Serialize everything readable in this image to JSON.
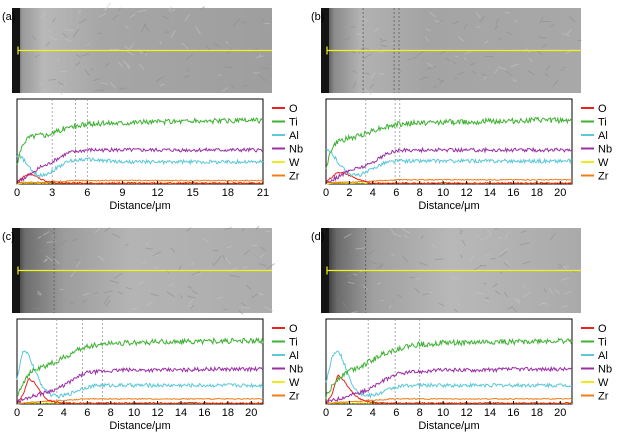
{
  "colors": {
    "O": "#e8231f",
    "Ti": "#3fb233",
    "Al": "#5cc8d8",
    "Nb": "#9b2fa6",
    "W": "#eded1c",
    "Zr": "#f07d1a",
    "scan_line": "#f2f21a",
    "micro_bg": "#a0a0a0"
  },
  "chart_data": [
    {
      "type": "line",
      "panel_label": "(a)",
      "xlabel": "Distance/μm",
      "ylabel": "",
      "xlim": [
        0,
        21
      ],
      "ylim": [
        0,
        100
      ],
      "xticks": [
        "0",
        "3",
        "6",
        "9",
        "12",
        "15",
        "18",
        "21"
      ],
      "legend": [
        "O",
        "Ti",
        "Al",
        "Nb",
        "W",
        "Zr"
      ],
      "legend_position": "right",
      "x": [
        0,
        0.5,
        1,
        1.5,
        2,
        2.5,
        3,
        3.5,
        4,
        4.5,
        5,
        5.5,
        6,
        7,
        8,
        9,
        10,
        12,
        14,
        16,
        18,
        21
      ],
      "series": [
        {
          "name": "Ti",
          "values": [
            22,
            48,
            55,
            57,
            58,
            58,
            60,
            62,
            65,
            67,
            68,
            69,
            70,
            71,
            72,
            72,
            73,
            73,
            74,
            74,
            74,
            75
          ]
        },
        {
          "name": "Nb",
          "values": [
            2,
            6,
            10,
            14,
            20,
            22,
            26,
            30,
            34,
            37,
            38,
            39,
            40,
            40,
            40,
            40,
            40,
            40,
            40,
            40,
            40,
            40
          ]
        },
        {
          "name": "Al",
          "values": [
            34,
            30,
            20,
            12,
            10,
            12,
            15,
            20,
            24,
            27,
            28,
            29,
            29,
            28,
            27,
            26,
            26,
            26,
            26,
            26,
            26,
            26
          ]
        },
        {
          "name": "O",
          "values": [
            3,
            8,
            12,
            10,
            6,
            3,
            2,
            1,
            1,
            1,
            1,
            1,
            1,
            1,
            1,
            1,
            1,
            1,
            1,
            1,
            1,
            1
          ]
        },
        {
          "name": "Zr",
          "values": [
            1,
            2,
            2,
            2,
            2,
            2,
            3,
            3,
            3,
            4,
            4,
            4,
            4,
            4,
            4,
            4,
            4,
            4,
            4,
            4,
            4,
            4
          ]
        },
        {
          "name": "W",
          "values": [
            0,
            1,
            1,
            1,
            1,
            1,
            1,
            1,
            1,
            1,
            1,
            1,
            1,
            1,
            1,
            1,
            1,
            1,
            1,
            1,
            1,
            1
          ]
        }
      ],
      "guide_lines_x": [
        3,
        5,
        6
      ],
      "image_guide_lines_x": []
    },
    {
      "type": "line",
      "panel_label": "(b)",
      "xlabel": "Distance/μm",
      "ylabel": "",
      "xlim": [
        0,
        21
      ],
      "ylim": [
        0,
        100
      ],
      "xticks": [
        "0",
        "2",
        "4",
        "6",
        "8",
        "10",
        "12",
        "14",
        "16",
        "18",
        "20"
      ],
      "legend": [
        "O",
        "Ti",
        "Al",
        "Nb",
        "W",
        "Zr"
      ],
      "legend_position": "right",
      "x": [
        0,
        0.5,
        1,
        1.5,
        2,
        2.5,
        3,
        3.5,
        4,
        4.5,
        5,
        5.5,
        6,
        7,
        8,
        9,
        10,
        12,
        14,
        16,
        18,
        21
      ],
      "series": [
        {
          "name": "Ti",
          "values": [
            20,
            42,
            50,
            52,
            54,
            55,
            58,
            60,
            63,
            65,
            67,
            68,
            70,
            71,
            72,
            72,
            73,
            73,
            74,
            74,
            75,
            75
          ]
        },
        {
          "name": "Nb",
          "values": [
            2,
            5,
            8,
            12,
            16,
            18,
            20,
            22,
            26,
            30,
            34,
            37,
            39,
            40,
            40,
            40,
            40,
            40,
            40,
            40,
            40,
            40
          ]
        },
        {
          "name": "Al",
          "values": [
            40,
            36,
            26,
            18,
            12,
            10,
            11,
            14,
            18,
            22,
            25,
            26,
            27,
            27,
            27,
            27,
            27,
            27,
            27,
            27,
            27,
            27
          ]
        },
        {
          "name": "O",
          "values": [
            3,
            8,
            14,
            13,
            10,
            7,
            4,
            2,
            1,
            1,
            1,
            1,
            1,
            1,
            1,
            1,
            1,
            1,
            1,
            1,
            1,
            1
          ]
        },
        {
          "name": "Zr",
          "values": [
            1,
            2,
            2,
            2,
            2,
            2,
            3,
            3,
            3,
            4,
            4,
            4,
            5,
            5,
            5,
            5,
            5,
            5,
            5,
            5,
            5,
            5
          ]
        },
        {
          "name": "W",
          "values": [
            0,
            1,
            1,
            1,
            1,
            1,
            1,
            1,
            1,
            1,
            1,
            1,
            1,
            1,
            1,
            1,
            1,
            1,
            1,
            1,
            1,
            1
          ]
        }
      ],
      "guide_lines_x": [
        3.4,
        5.9,
        6.3
      ],
      "image_guide_lines_x": [
        3.4,
        5.9,
        6.3
      ]
    },
    {
      "type": "line",
      "panel_label": "(c)",
      "xlabel": "Distance/μm",
      "ylabel": "",
      "xlim": [
        0,
        21
      ],
      "ylim": [
        0,
        100
      ],
      "xticks": [
        "0",
        "2",
        "4",
        "6",
        "8",
        "10",
        "12",
        "14",
        "16",
        "18",
        "20"
      ],
      "legend": [
        "O",
        "Ti",
        "Al",
        "Nb",
        "W",
        "Zr"
      ],
      "legend_position": "right",
      "x": [
        0,
        0.5,
        1,
        1.5,
        2,
        2.5,
        3,
        3.5,
        4,
        4.5,
        5,
        5.5,
        6,
        7,
        8,
        9,
        10,
        12,
        14,
        16,
        18,
        21
      ],
      "series": [
        {
          "name": "Ti",
          "values": [
            10,
            25,
            35,
            40,
            42,
            45,
            48,
            50,
            55,
            58,
            62,
            65,
            68,
            70,
            72,
            72,
            72,
            73,
            73,
            74,
            74,
            74
          ]
        },
        {
          "name": "Nb",
          "values": [
            2,
            5,
            8,
            10,
            12,
            14,
            16,
            18,
            22,
            26,
            30,
            34,
            37,
            38,
            39,
            40,
            40,
            40,
            40,
            41,
            41,
            41
          ]
        },
        {
          "name": "Al",
          "values": [
            30,
            62,
            58,
            40,
            25,
            15,
            10,
            9,
            10,
            12,
            15,
            18,
            20,
            22,
            22,
            22,
            22,
            22,
            22,
            22,
            22,
            22
          ]
        },
        {
          "name": "O",
          "values": [
            2,
            10,
            30,
            25,
            15,
            6,
            3,
            2,
            1,
            1,
            1,
            1,
            1,
            1,
            1,
            1,
            1,
            1,
            1,
            1,
            1,
            1
          ]
        },
        {
          "name": "Zr",
          "values": [
            1,
            1,
            2,
            2,
            3,
            3,
            3,
            4,
            4,
            5,
            5,
            6,
            6,
            6,
            6,
            6,
            6,
            6,
            6,
            6,
            6,
            6
          ]
        },
        {
          "name": "W",
          "values": [
            0,
            1,
            1,
            1,
            1,
            1,
            1,
            1,
            1,
            1,
            1,
            1,
            1,
            1,
            1,
            1,
            1,
            1,
            1,
            1,
            1,
            1
          ]
        }
      ],
      "guide_lines_x": [
        3.4,
        5.6,
        7.3
      ],
      "image_guide_lines_x": [
        3.4
      ]
    },
    {
      "type": "line",
      "panel_label": "(d)",
      "xlabel": "Distance/μm",
      "ylabel": "",
      "xlim": [
        0,
        21
      ],
      "ylim": [
        0,
        100
      ],
      "xticks": [
        "0",
        "2",
        "4",
        "6",
        "8",
        "10",
        "12",
        "14",
        "16",
        "18",
        "20"
      ],
      "legend": [
        "O",
        "Ti",
        "Al",
        "Nb",
        "W",
        "Zr"
      ],
      "legend_position": "right",
      "x": [
        0,
        0.5,
        1,
        1.5,
        2,
        2.5,
        3,
        3.5,
        4,
        4.5,
        5,
        5.5,
        6,
        7,
        8,
        9,
        10,
        12,
        14,
        16,
        18,
        21
      ],
      "series": [
        {
          "name": "Ti",
          "values": [
            8,
            20,
            30,
            35,
            40,
            42,
            45,
            48,
            52,
            56,
            60,
            62,
            64,
            68,
            70,
            71,
            72,
            72,
            73,
            73,
            74,
            74
          ]
        },
        {
          "name": "Nb",
          "values": [
            2,
            4,
            6,
            8,
            10,
            12,
            14,
            16,
            20,
            24,
            28,
            32,
            35,
            37,
            38,
            39,
            40,
            40,
            40,
            41,
            41,
            41
          ]
        },
        {
          "name": "Al",
          "values": [
            25,
            55,
            65,
            50,
            30,
            18,
            12,
            10,
            10,
            12,
            15,
            18,
            20,
            22,
            22,
            22,
            22,
            22,
            22,
            22,
            22,
            22
          ]
        },
        {
          "name": "O",
          "values": [
            2,
            10,
            35,
            28,
            18,
            10,
            5,
            3,
            2,
            1,
            1,
            1,
            1,
            1,
            1,
            1,
            1,
            1,
            1,
            1,
            1,
            1
          ]
        },
        {
          "name": "Zr",
          "values": [
            1,
            1,
            2,
            2,
            3,
            3,
            3,
            4,
            4,
            5,
            5,
            6,
            6,
            6,
            6,
            6,
            6,
            6,
            6,
            6,
            6,
            6
          ]
        },
        {
          "name": "W",
          "values": [
            0,
            1,
            1,
            1,
            1,
            1,
            1,
            1,
            1,
            1,
            1,
            1,
            1,
            1,
            1,
            1,
            1,
            1,
            1,
            1,
            1,
            1
          ]
        }
      ],
      "guide_lines_x": [
        3.6,
        5.9,
        8
      ],
      "image_guide_lines_x": [
        3.6
      ]
    }
  ]
}
